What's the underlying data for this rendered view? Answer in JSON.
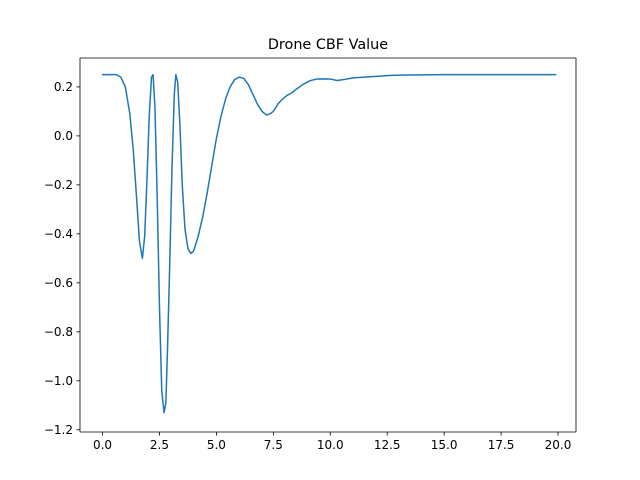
{
  "chart_data": {
    "type": "line",
    "title": "Drone CBF Value",
    "xlabel": "",
    "ylabel": "",
    "xlim": [
      -0.99,
      20.79
    ],
    "ylim": [
      -1.209,
      0.318
    ],
    "xticks": [
      0.0,
      2.5,
      5.0,
      7.5,
      10.0,
      12.5,
      15.0,
      17.5,
      20.0
    ],
    "xtick_labels": [
      "0.0",
      "2.5",
      "5.0",
      "7.5",
      "10.0",
      "12.5",
      "15.0",
      "17.5",
      "20.0"
    ],
    "yticks": [
      -1.2,
      -1.0,
      -0.8,
      -0.6,
      -0.4,
      -0.2,
      0.0,
      0.2
    ],
    "ytick_labels": [
      "−1.2",
      "−1.0",
      "−0.8",
      "−0.6",
      "−0.4",
      "−0.2",
      "0.0",
      "0.2"
    ],
    "grid": false,
    "series": [
      {
        "color": "#1f77b4",
        "x": [
          0.0,
          0.3,
          0.6,
          0.8,
          1.0,
          1.2,
          1.35,
          1.5,
          1.62,
          1.75,
          1.85,
          1.95,
          2.05,
          2.15,
          2.22,
          2.3,
          2.4,
          2.5,
          2.6,
          2.7,
          2.78,
          2.85,
          2.95,
          3.05,
          3.15,
          3.22,
          3.3,
          3.4,
          3.5,
          3.62,
          3.75,
          3.88,
          4.0,
          4.2,
          4.4,
          4.6,
          4.8,
          5.0,
          5.2,
          5.4,
          5.6,
          5.8,
          6.0,
          6.2,
          6.4,
          6.6,
          6.8,
          7.0,
          7.2,
          7.35,
          7.5,
          7.7,
          7.9,
          8.1,
          8.3,
          8.5,
          8.8,
          9.1,
          9.4,
          9.7,
          10.0,
          10.3,
          10.6,
          11.0,
          11.5,
          12.0,
          12.5,
          13.0,
          14.0,
          15.0,
          16.0,
          17.0,
          18.0,
          19.0,
          19.9
        ],
        "y": [
          0.25,
          0.25,
          0.25,
          0.24,
          0.2,
          0.09,
          -0.06,
          -0.26,
          -0.43,
          -0.5,
          -0.41,
          -0.18,
          0.08,
          0.24,
          0.25,
          0.12,
          -0.25,
          -0.7,
          -1.04,
          -1.13,
          -1.09,
          -0.88,
          -0.52,
          -0.13,
          0.17,
          0.25,
          0.22,
          0.04,
          -0.2,
          -0.38,
          -0.46,
          -0.48,
          -0.47,
          -0.41,
          -0.33,
          -0.23,
          -0.12,
          -0.01,
          0.08,
          0.15,
          0.2,
          0.23,
          0.24,
          0.235,
          0.21,
          0.17,
          0.13,
          0.1,
          0.085,
          0.09,
          0.1,
          0.13,
          0.15,
          0.165,
          0.175,
          0.19,
          0.21,
          0.225,
          0.232,
          0.233,
          0.232,
          0.226,
          0.23,
          0.237,
          0.24,
          0.243,
          0.246,
          0.248,
          0.249,
          0.25,
          0.25,
          0.25,
          0.25,
          0.25,
          0.25
        ]
      }
    ]
  }
}
